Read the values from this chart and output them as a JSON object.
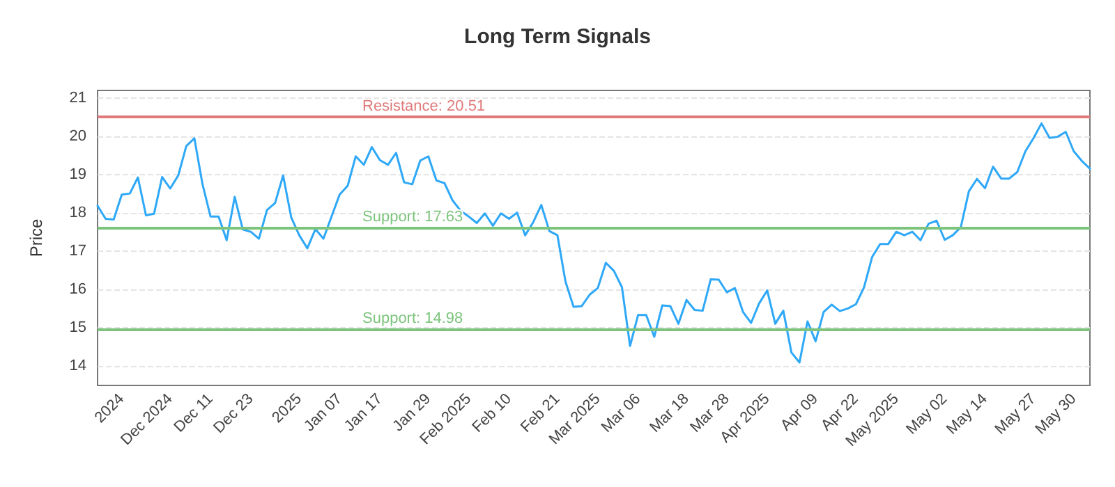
{
  "chart_data": {
    "type": "line",
    "title": "Long Term Signals",
    "ylabel": "Price",
    "categories": [
      null,
      null,
      null,
      "2024",
      null,
      null,
      null,
      null,
      null,
      "Dec 2024",
      null,
      null,
      null,
      null,
      "Dec 11",
      null,
      null,
      null,
      null,
      "Dec 23",
      null,
      null,
      null,
      null,
      null,
      "2025",
      null,
      null,
      null,
      null,
      "Jan 07",
      null,
      null,
      null,
      null,
      "Jan 17",
      null,
      null,
      null,
      null,
      null,
      "Jan 29",
      null,
      null,
      null,
      null,
      "Feb 2025",
      null,
      null,
      null,
      null,
      "Feb 10",
      null,
      null,
      null,
      null,
      null,
      "Feb 21",
      null,
      null,
      null,
      null,
      "Mar 2025",
      null,
      null,
      null,
      null,
      "Mar 06",
      null,
      null,
      null,
      null,
      null,
      "Mar 18",
      null,
      null,
      null,
      null,
      "Mar 28",
      null,
      null,
      null,
      null,
      "Apr 2025",
      null,
      null,
      null,
      null,
      null,
      "Apr 09",
      null,
      null,
      null,
      null,
      "Apr 22",
      null,
      null,
      null,
      null,
      "May 2025",
      null,
      null,
      null,
      null,
      null,
      "May 02",
      null,
      null,
      null,
      null,
      "May 14",
      null,
      null,
      null,
      null,
      null,
      "May 27",
      null,
      null,
      null,
      null,
      "May 30",
      null,
      null
    ],
    "series": [
      {
        "color": "#2ea8f7",
        "values": [
          18.19,
          17.85,
          17.83,
          18.48,
          18.51,
          18.93,
          17.94,
          17.98,
          18.94,
          18.64,
          18.98,
          19.75,
          19.95,
          18.76,
          17.91,
          17.91,
          17.29,
          18.42,
          17.57,
          17.51,
          17.33,
          18.08,
          18.26,
          18.98,
          17.89,
          17.42,
          17.08,
          17.58,
          17.33,
          17.91,
          18.48,
          18.71,
          19.48,
          19.26,
          19.72,
          19.38,
          19.26,
          19.57,
          18.8,
          18.75,
          19.37,
          19.48,
          18.85,
          18.78,
          18.33,
          18.06,
          17.91,
          17.74,
          17.99,
          17.67,
          17.99,
          17.85,
          18.01,
          17.42,
          17.76,
          18.21,
          17.53,
          17.42,
          16.21,
          15.55,
          15.57,
          15.87,
          16.04,
          16.7,
          16.49,
          16.06,
          14.53,
          15.34,
          15.34,
          14.77,
          15.59,
          15.57,
          15.11,
          15.73,
          15.47,
          15.45,
          16.27,
          16.26,
          15.93,
          16.04,
          15.42,
          15.13,
          15.64,
          15.98,
          15.11,
          15.45,
          14.36,
          14.1,
          15.17,
          14.65,
          15.42,
          15.61,
          15.44,
          15.51,
          15.62,
          16.06,
          16.85,
          17.19,
          17.19,
          17.51,
          17.42,
          17.51,
          17.29,
          17.72,
          17.8,
          17.3,
          17.42,
          17.63,
          18.57,
          18.89,
          18.65,
          19.21,
          18.9,
          18.9,
          19.07,
          19.61,
          19.95,
          20.34,
          19.96,
          19.99,
          20.12,
          19.61,
          19.36,
          19.16
        ]
      }
    ],
    "ylim": [
      13.5,
      21.2
    ],
    "yticks": [
      14,
      15,
      16,
      17,
      18,
      19,
      20,
      21
    ],
    "grid": "y",
    "marker": "none",
    "line_style": "solid",
    "ref_lines": [
      {
        "axis": "y",
        "value": 20.51,
        "label": "Resistance: 20.51",
        "color": "#e07a7a"
      },
      {
        "axis": "y",
        "value": 17.63,
        "label": "Support: 17.63",
        "color": "#7cc47c"
      },
      {
        "axis": "y",
        "value": 14.98,
        "label": "Support: 14.98",
        "color": "#7cc47c"
      }
    ]
  }
}
